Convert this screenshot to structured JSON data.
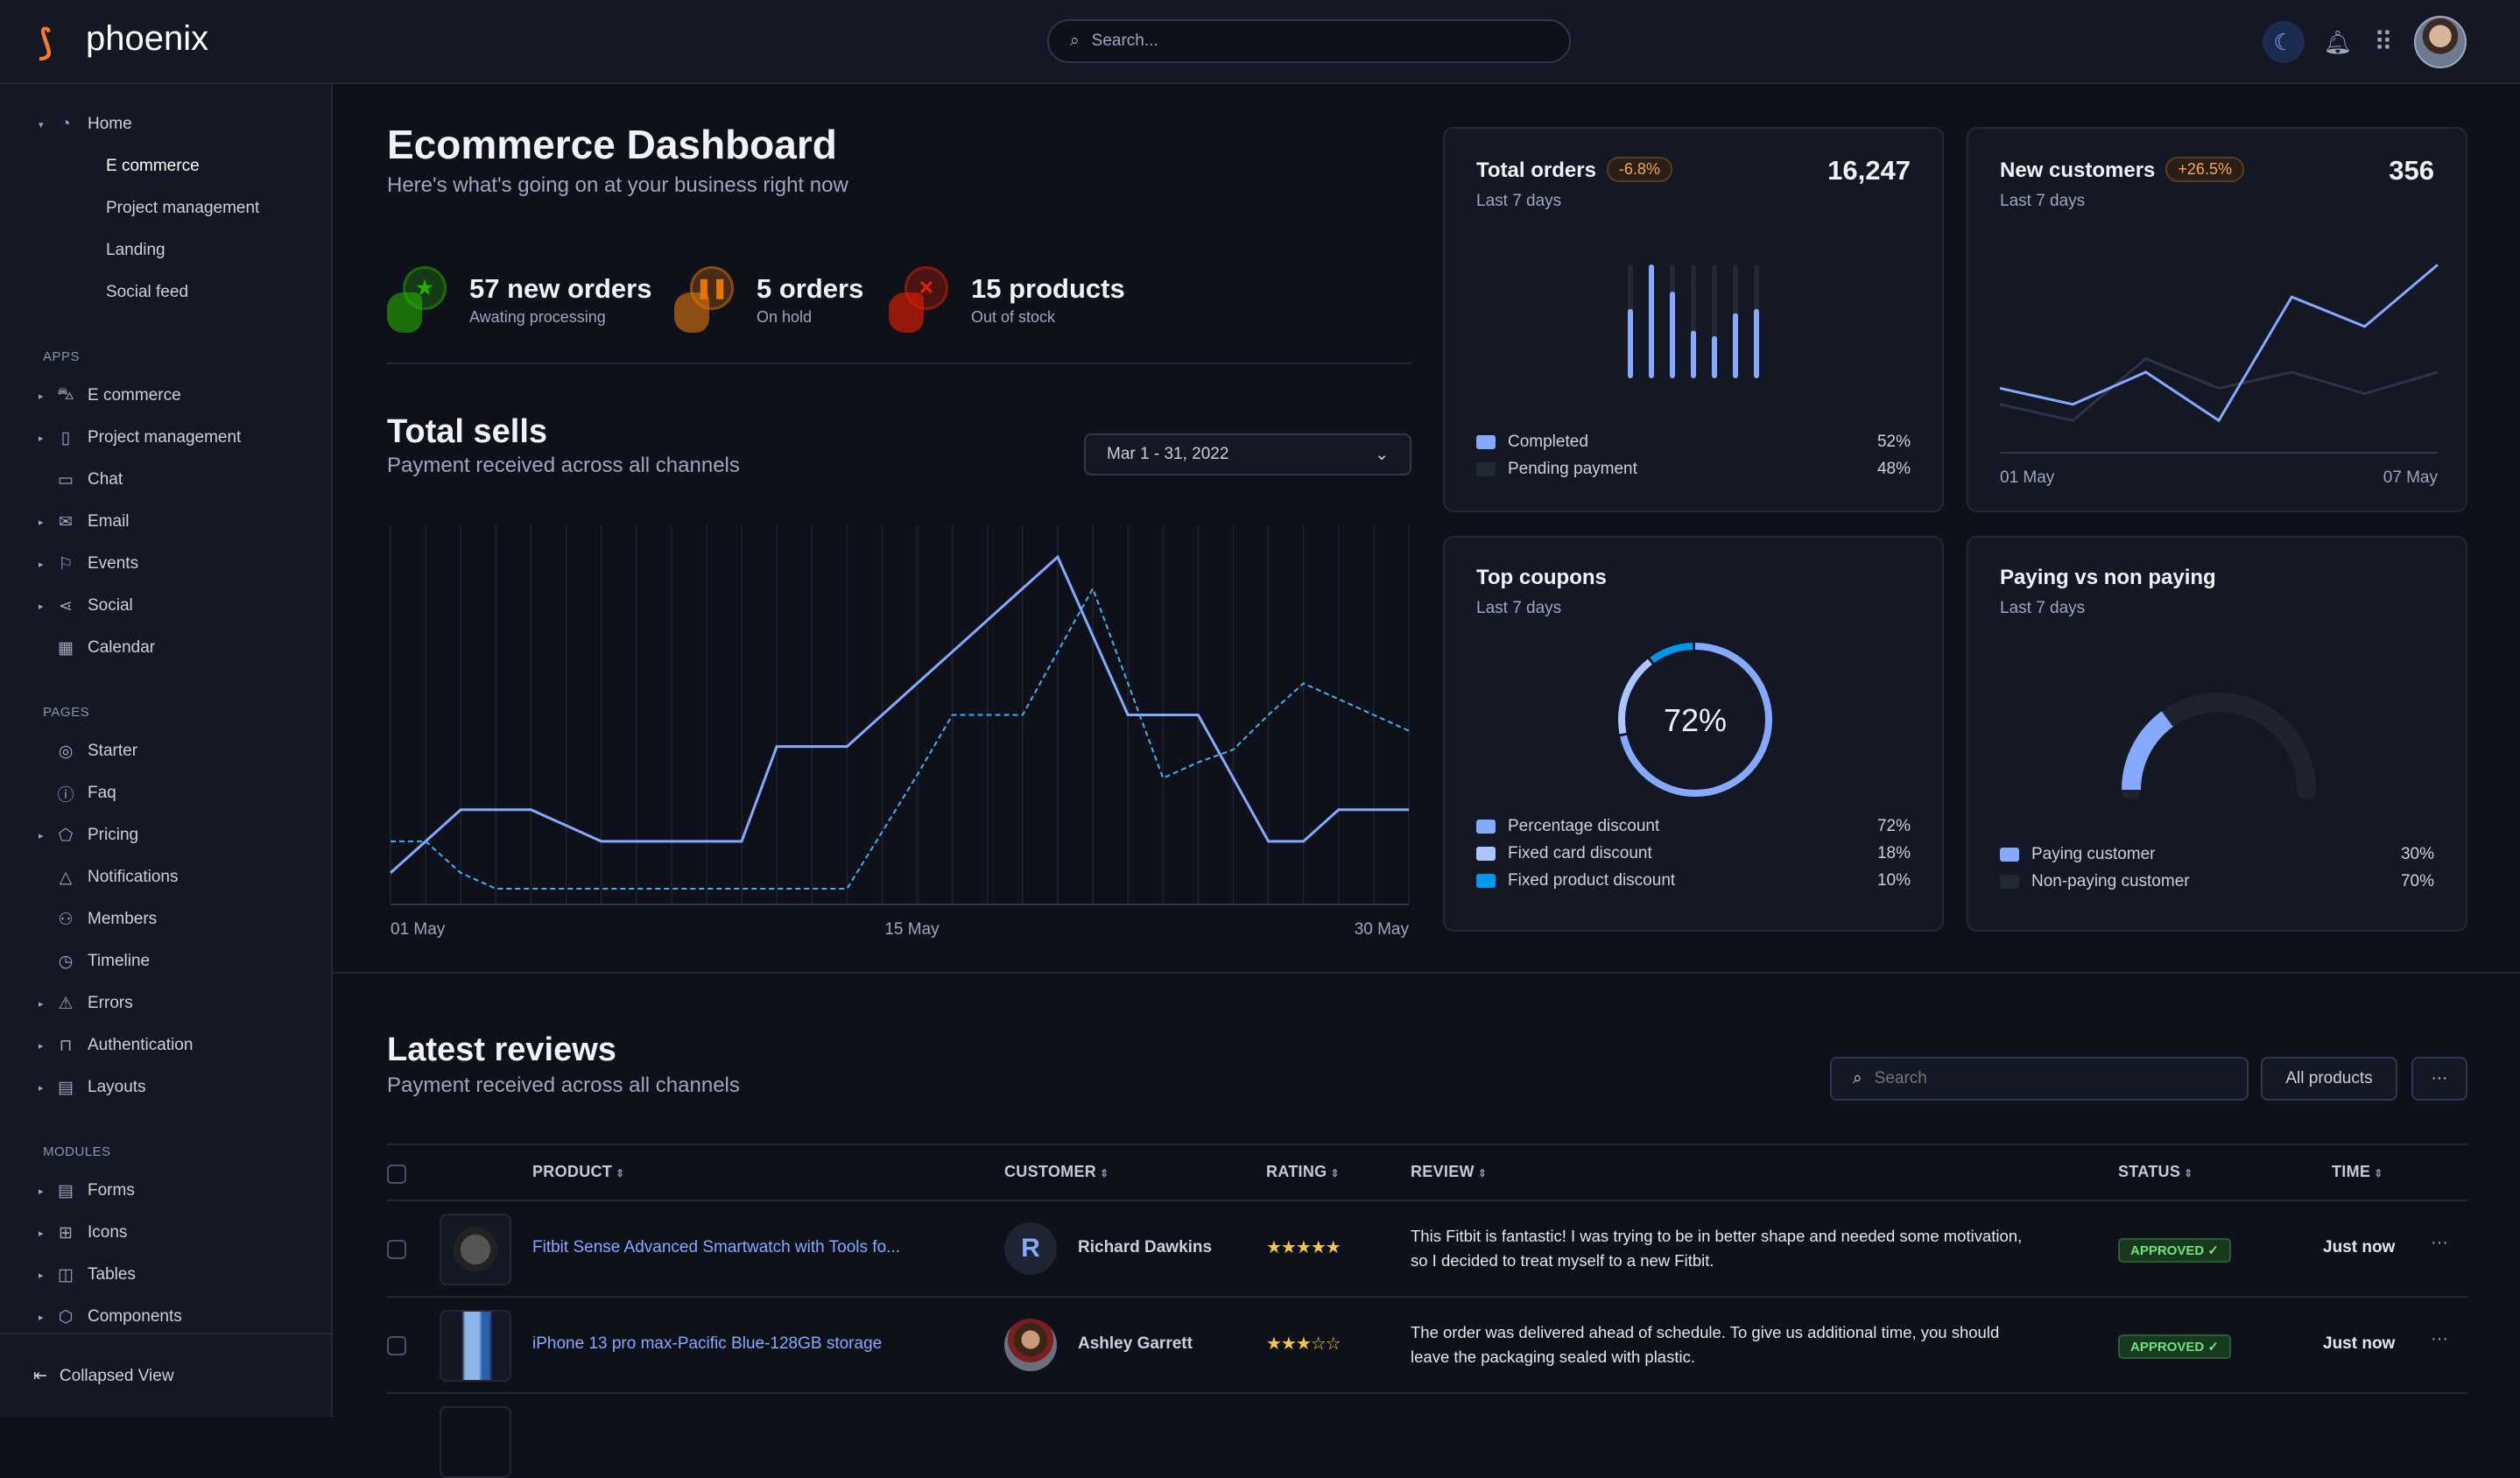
{
  "app": {
    "name": "phoenix"
  },
  "header": {
    "search_placeholder": "Search...",
    "icons": [
      "moon-icon",
      "bell-icon",
      "apps-grid-icon",
      "avatar"
    ]
  },
  "sidebar": {
    "home": {
      "label": "Home",
      "icon": "pie-chart-icon",
      "children": [
        {
          "label": "E commerce",
          "active": true
        },
        {
          "label": "Project management"
        },
        {
          "label": "Landing"
        },
        {
          "label": "Social feed"
        }
      ]
    },
    "sections": [
      {
        "title": "APPS",
        "items": [
          {
            "label": "E commerce",
            "icon": "cart-icon",
            "caret": true
          },
          {
            "label": "Project management",
            "icon": "clipboard-icon",
            "caret": true
          },
          {
            "label": "Chat",
            "icon": "chat-icon",
            "caret": false
          },
          {
            "label": "Email",
            "icon": "mail-icon",
            "caret": true
          },
          {
            "label": "Events",
            "icon": "bookmark-icon",
            "caret": true
          },
          {
            "label": "Social",
            "icon": "share-icon",
            "caret": true
          },
          {
            "label": "Calendar",
            "icon": "calendar-icon",
            "caret": false
          }
        ]
      },
      {
        "title": "PAGES",
        "items": [
          {
            "label": "Starter",
            "icon": "compass-icon",
            "caret": false
          },
          {
            "label": "Faq",
            "icon": "help-circle-icon",
            "caret": false
          },
          {
            "label": "Pricing",
            "icon": "tag-icon",
            "caret": true
          },
          {
            "label": "Notifications",
            "icon": "bell-icon",
            "caret": false
          },
          {
            "label": "Members",
            "icon": "users-icon",
            "caret": false
          },
          {
            "label": "Timeline",
            "icon": "clock-icon",
            "caret": false
          },
          {
            "label": "Errors",
            "icon": "alert-triangle-icon",
            "caret": true
          },
          {
            "label": "Authentication",
            "icon": "lock-icon",
            "caret": true
          },
          {
            "label": "Layouts",
            "icon": "layout-icon",
            "caret": true
          }
        ]
      },
      {
        "title": "MODULES",
        "items": [
          {
            "label": "Forms",
            "icon": "file-text-icon",
            "caret": true
          },
          {
            "label": "Icons",
            "icon": "grid-icon",
            "caret": true
          },
          {
            "label": "Tables",
            "icon": "columns-icon",
            "caret": true
          },
          {
            "label": "Components",
            "icon": "package-icon",
            "caret": true
          }
        ]
      }
    ],
    "collapse_label": "Collapsed View"
  },
  "dashboard": {
    "title": "Ecommerce Dashboard",
    "subtitle": "Here's what's going on at your business right now"
  },
  "stats": [
    {
      "title": "57 new orders",
      "sub": "Awating processing",
      "icon": "star-icon",
      "color": "#25b003"
    },
    {
      "title": "5 orders",
      "sub": "On hold",
      "icon": "pause-icon",
      "color": "#e5780b"
    },
    {
      "title": "15 products",
      "sub": "Out of stock",
      "icon": "x-icon",
      "color": "#ec1f00"
    }
  ],
  "total_sells": {
    "title": "Total sells",
    "subtitle": "Payment received across all channels",
    "date_range": "Mar 1 - 31, 2022"
  },
  "cards": {
    "total_orders": {
      "title": "Total orders",
      "badge": "-6.8%",
      "value": "16,247",
      "period": "Last 7 days",
      "legend": [
        {
          "label": "Completed",
          "value": "52%",
          "color": "#85a9ff"
        },
        {
          "label": "Pending payment",
          "value": "48%",
          "color": "#222834"
        }
      ]
    },
    "new_customers": {
      "title": "New customers",
      "badge": "+26.5%",
      "value": "356",
      "period": "Last 7 days"
    },
    "top_coupons": {
      "title": "Top coupons",
      "period": "Last 7 days",
      "center": "72%",
      "legend": [
        {
          "label": "Percentage discount",
          "value": "72%",
          "color": "#85a9ff"
        },
        {
          "label": "Fixed card discount",
          "value": "18%",
          "color": "#adc5ff"
        },
        {
          "label": "Fixed product discount",
          "value": "10%",
          "color": "#0097eb"
        }
      ]
    },
    "paying": {
      "title": "Paying vs non paying",
      "period": "Last 7 days",
      "legend": [
        {
          "label": "Paying customer",
          "value": "30%",
          "color": "#85a9ff"
        },
        {
          "label": "Non-paying customer",
          "value": "70%",
          "color": "#222834"
        }
      ]
    }
  },
  "chart_data": [
    {
      "type": "line",
      "x_tick_labels": [
        "01 May",
        "15 May",
        "30 May"
      ],
      "x": [
        1,
        2,
        3,
        4,
        5,
        6,
        7,
        8,
        9,
        10,
        11,
        12,
        13,
        14,
        15,
        16,
        17,
        18,
        19,
        20,
        21,
        22,
        23,
        24,
        25,
        26,
        27,
        28,
        29,
        30
      ],
      "ylim": [
        0,
        120
      ],
      "grid": "vertical",
      "series": [
        {
          "style": "solid",
          "color": "#85a9ff",
          "values": [
            10,
            20,
            30,
            30,
            30,
            25,
            20,
            20,
            20,
            20,
            20,
            50,
            50,
            50,
            60,
            70,
            80,
            90,
            100,
            110,
            85,
            60,
            60,
            60,
            40,
            20,
            20,
            30,
            30,
            30
          ]
        },
        {
          "style": "dashed",
          "color": "#3ab4f2",
          "values": [
            20,
            20,
            10,
            5,
            5,
            5,
            5,
            5,
            5,
            5,
            5,
            5,
            5,
            5,
            23,
            41,
            60,
            60,
            60,
            80,
            100,
            70,
            40,
            45,
            49,
            60,
            70,
            65,
            60,
            55
          ]
        }
      ]
    },
    {
      "type": "bar",
      "title": "Total orders",
      "categories": [
        1,
        2,
        3,
        4,
        5,
        6,
        7
      ],
      "values": [
        59,
        100,
        75,
        39,
        34,
        55,
        59
      ],
      "ylim": [
        0,
        100
      ]
    },
    {
      "type": "line",
      "title": "New customers",
      "x_tick_labels": [
        "01 May",
        "07 May"
      ],
      "series": [
        {
          "color": "#85a9ff",
          "values": [
            24,
            18,
            30,
            12,
            58,
            47,
            70
          ]
        },
        {
          "color": "#2e3447",
          "values": [
            18,
            12,
            35,
            24,
            30,
            22,
            30
          ]
        }
      ],
      "ylim": [
        0,
        75
      ]
    },
    {
      "type": "pie",
      "title": "Top coupons",
      "values": [
        72,
        18,
        10
      ],
      "labels": [
        "Percentage discount",
        "Fixed card discount",
        "Fixed product discount"
      ]
    },
    {
      "type": "pie",
      "title": "Paying vs non paying",
      "values": [
        30,
        70
      ],
      "labels": [
        "Paying customer",
        "Non-paying customer"
      ],
      "shape": "half-gauge"
    }
  ],
  "reviews": {
    "title": "Latest reviews",
    "subtitle": "Payment received across all channels",
    "search_placeholder": "Search",
    "filter_label": "All products",
    "more_label": "···",
    "columns": [
      "PRODUCT",
      "CUSTOMER",
      "RATING",
      "REVIEW",
      "STATUS",
      "TIME"
    ],
    "rows": [
      {
        "product": "Fitbit Sense Advanced Smartwatch with Tools fo...",
        "customer": "Richard Dawkins",
        "initial": "R",
        "rating": 5,
        "review_lines": [
          "This Fitbit is fantastic! I was trying to be in better shape and needed some motivation,",
          "so I decided to treat myself to a new Fitbit."
        ],
        "status": "APPROVED ✓",
        "time": "Just now"
      },
      {
        "product": "iPhone 13 pro max-Pacific Blue-128GB storage",
        "customer": "Ashley Garrett",
        "initial": "",
        "rating": 3,
        "review_lines": [
          "The order was delivered ahead of schedule. To give us additional time, you should",
          "leave the packaging sealed with plastic."
        ],
        "status": "APPROVED ✓",
        "time": "Just now"
      }
    ]
  }
}
